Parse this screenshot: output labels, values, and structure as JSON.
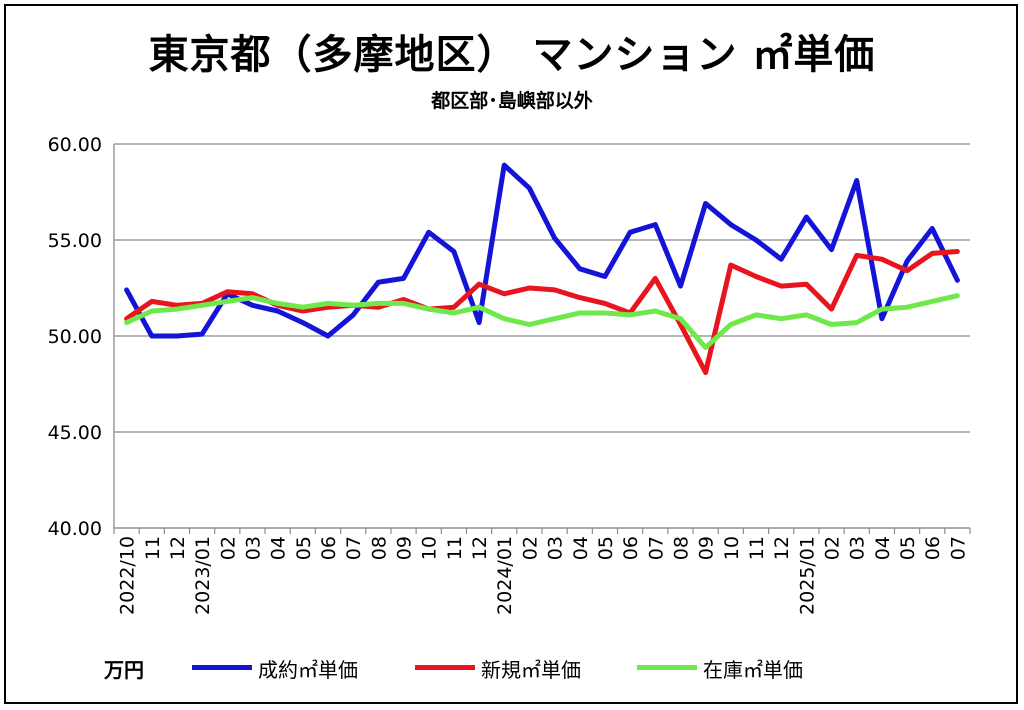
{
  "title": "東京都（多摩地区） マンション ㎡単価",
  "subtitle": "都区部･島嶼部以外",
  "unit_label": "万円",
  "colors": {
    "contract": "#1414d8",
    "new": "#e8141e",
    "stock": "#6ee84a",
    "grid": "#8c8c8c"
  },
  "chart_data": {
    "type": "line",
    "title": "東京都（多摩地区） マンション ㎡単価",
    "subtitle": "都区部･島嶼部以外",
    "ylabel": "万円",
    "ylim": [
      40,
      60
    ],
    "y_ticks": [
      "40.00",
      "45.00",
      "50.00",
      "55.00",
      "60.00"
    ],
    "x_labels": [
      "2022/10",
      "11",
      "12",
      "2023/01",
      "02",
      "03",
      "04",
      "05",
      "06",
      "07",
      "08",
      "09",
      "10",
      "11",
      "12",
      "2024/01",
      "02",
      "03",
      "04",
      "05",
      "06",
      "07",
      "08",
      "09",
      "10",
      "11",
      "12",
      "2025/01",
      "02",
      "03",
      "04",
      "05",
      "06",
      "07"
    ],
    "grid": true,
    "legend_position": "bottom",
    "series": [
      {
        "name": "成約㎡単価",
        "color": "#1414d8",
        "values": [
          52.4,
          50.0,
          50.0,
          50.1,
          52.2,
          51.6,
          51.3,
          50.7,
          50.0,
          51.1,
          52.8,
          53.0,
          55.4,
          54.4,
          50.7,
          58.9,
          57.7,
          55.1,
          53.5,
          53.1,
          55.4,
          55.8,
          52.6,
          56.9,
          55.8,
          55.0,
          54.0,
          56.2,
          54.5,
          58.1,
          50.9,
          53.9,
          55.6,
          52.9
        ]
      },
      {
        "name": "新規㎡単価",
        "color": "#e8141e",
        "values": [
          50.9,
          51.8,
          51.6,
          51.7,
          52.3,
          52.2,
          51.6,
          51.3,
          51.5,
          51.6,
          51.5,
          51.9,
          51.4,
          51.5,
          52.7,
          52.2,
          52.5,
          52.4,
          52.0,
          51.7,
          51.2,
          53.0,
          50.6,
          48.1,
          53.7,
          53.1,
          52.6,
          52.7,
          51.4,
          54.2,
          54.0,
          53.4,
          54.3,
          54.4
        ]
      },
      {
        "name": "在庫㎡単価",
        "color": "#6ee84a",
        "values": [
          50.7,
          51.3,
          51.4,
          51.6,
          51.8,
          52.0,
          51.7,
          51.5,
          51.7,
          51.6,
          51.7,
          51.7,
          51.4,
          51.2,
          51.5,
          50.9,
          50.6,
          50.9,
          51.2,
          51.2,
          51.1,
          51.3,
          50.9,
          49.4,
          50.6,
          51.1,
          50.9,
          51.1,
          50.6,
          50.7,
          51.4,
          51.5,
          51.8,
          52.1
        ]
      }
    ]
  }
}
